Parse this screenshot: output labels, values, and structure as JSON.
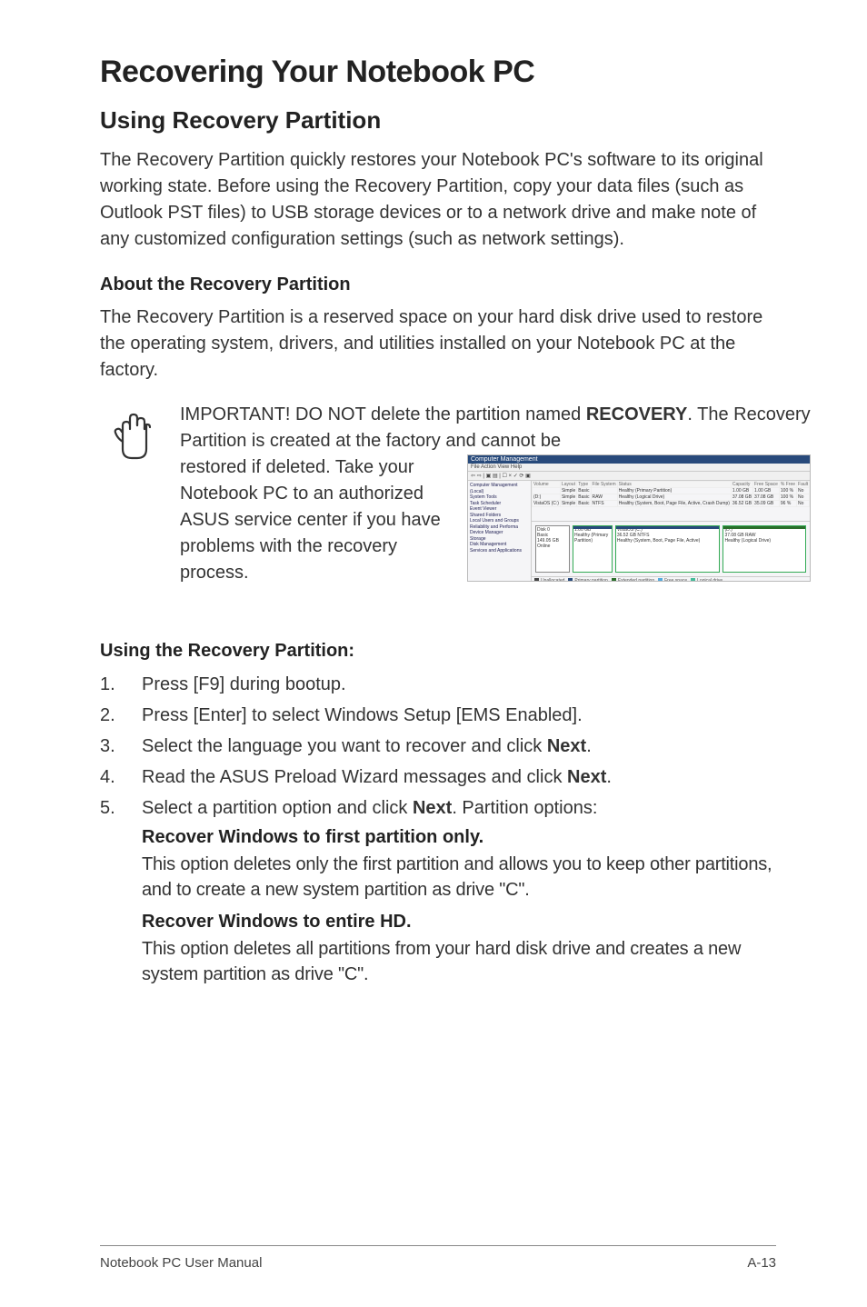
{
  "title": "Recovering Your Notebook PC",
  "section1": {
    "heading": "Using Recovery Partition",
    "intro": "The Recovery Partition quickly restores your Notebook PC's software to its original working state. Before using the Recovery Partition, copy your data files (such as Outlook PST files) to USB storage devices or to a network drive and make note of any customized configuration settings (such as network settings).",
    "sub_heading": "About the Recovery Partition",
    "sub_body": "The Recovery Partition is a reserved space on your hard disk drive used to restore the operating system, drivers, and utilities installed on your Notebook PC at the factory."
  },
  "note": {
    "line1_pre": "IMPORTANT! DO NOT delete the partition named ",
    "line1_strong": "RECOVERY",
    "line1_post": ". The Recovery Partition is created at the factory and cannot be ",
    "line_left": "restored if deleted. Take your Notebook PC to an authorized ASUS service center if you have problems with the recovery process."
  },
  "disk_mgmt": {
    "window_title": "Computer Management",
    "menu": "File  Action  View  Help",
    "toolbar": "⇦ ⇨ | ▣ ▤ | ☐ × ✓ ⟳ ▣",
    "tree_items": [
      "Computer Management (Local)",
      " System Tools",
      "  Task Scheduler",
      "  Event Viewer",
      "  Shared Folders",
      "  Local Users and Groups",
      "  Reliability and Performa",
      "  Device Manager",
      " Storage",
      "  Disk Management",
      " Services and Applications"
    ],
    "columns": [
      "Volume",
      "Layout",
      "Type",
      "File System",
      "Status",
      "Capacity",
      "Free Space",
      "% Free",
      "Fault"
    ],
    "rows": [
      [
        "",
        "Simple",
        "Basic",
        "",
        "Healthy (Primary Partition)",
        "1.00 GB",
        "1.00 GB",
        "100 %",
        "No"
      ],
      [
        "(D:)",
        "Simple",
        "Basic",
        "RAW",
        "Healthy (Logical Drive)",
        "37.08 GB",
        "37.08 GB",
        "100 %",
        "No"
      ],
      [
        "VistaOS (C:)",
        "Simple",
        "Basic",
        "NTFS",
        "Healthy (System, Boot, Page File, Active, Crash Dump)",
        "36.52 GB",
        "35.09 GB",
        "96 %",
        "No"
      ]
    ],
    "disk_label": {
      "name": "Disk 0",
      "type": "Basic",
      "size": "149.05 GB",
      "status": "Online"
    },
    "parts": [
      {
        "name": "",
        "size": "1.00 GB",
        "status": "Healthy (Primary Partition)"
      },
      {
        "name": "VistaOS (C:)",
        "size": "36.52 GB NTFS",
        "status": "Healthy (System, Boot, Page File, Active)"
      },
      {
        "name": "(D:)",
        "size": "37.08 GB RAW",
        "status": "Healthy (Logical Drive)"
      }
    ],
    "legend": [
      {
        "color": "#444",
        "label": "Unallocated"
      },
      {
        "color": "#284a7b",
        "label": "Primary partition"
      },
      {
        "color": "#2a6e2a",
        "label": "Extended partition"
      },
      {
        "color": "#5ad",
        "label": "Free space"
      },
      {
        "color": "#4b9",
        "label": "Logical drive"
      }
    ]
  },
  "using": {
    "heading": "Using the Recovery Partition:",
    "steps": [
      {
        "n": "1.",
        "t": "Press [F9] during bootup."
      },
      {
        "n": "2.",
        "t": "Press [Enter] to select Windows Setup [EMS Enabled]."
      },
      {
        "n": "3.",
        "pre": "Select the language you want to recover and click ",
        "b": "Next",
        "post": "."
      },
      {
        "n": "4.",
        "pre": "Read the ASUS Preload Wizard messages and click ",
        "b": "Next",
        "post": "."
      },
      {
        "n": "5.",
        "pre": "Select a partition option and click ",
        "b": "Next",
        "post": ". Partition options:"
      }
    ],
    "opt1_h": "Recover Windows to first partition only.",
    "opt1_b": "This option deletes only the first partition and allows you to keep other partitions, and to create a new system partition as drive \"C\".",
    "opt2_h": "Recover Windows to entire HD.",
    "opt2_b": "This option deletes all partitions from your hard disk drive and creates a new system partition as drive \"C\"."
  },
  "footer": {
    "left": "Notebook PC User Manual",
    "right": "A-13"
  }
}
